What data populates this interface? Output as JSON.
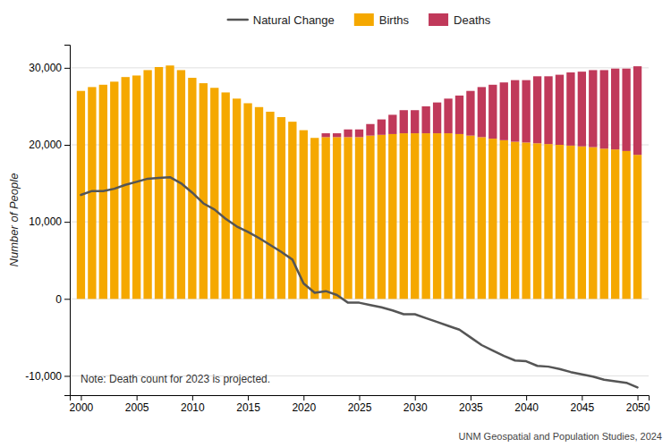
{
  "chart_data": {
    "type": "bar",
    "stacked": true,
    "ylabel": "Number of People",
    "annotations": [
      "Note: Death count for 2023 is projected.",
      "UNM Geospatial and Population Studies, 2024"
    ],
    "x": [
      2000,
      2001,
      2002,
      2003,
      2004,
      2005,
      2006,
      2007,
      2008,
      2009,
      2010,
      2011,
      2012,
      2013,
      2014,
      2015,
      2016,
      2017,
      2018,
      2019,
      2020,
      2021,
      2022,
      2023,
      2024,
      2025,
      2026,
      2027,
      2028,
      2029,
      2030,
      2031,
      2032,
      2033,
      2034,
      2035,
      2036,
      2037,
      2038,
      2039,
      2040,
      2041,
      2042,
      2043,
      2044,
      2045,
      2046,
      2047,
      2048,
      2049,
      2050
    ],
    "series": [
      {
        "name": "Natural Change",
        "type": "line",
        "color": "#555555",
        "values": [
          13500,
          14000,
          14000,
          14300,
          14800,
          15200,
          15600,
          15700,
          15800,
          15000,
          13800,
          12400,
          11600,
          10400,
          9400,
          8700,
          7900,
          7000,
          6100,
          5100,
          2000,
          800,
          1000,
          500,
          -500,
          -500,
          -800,
          -1100,
          -1500,
          -2000,
          -2000,
          -2500,
          -3000,
          -3500,
          -4000,
          -5000,
          -6000,
          -6700,
          -7400,
          -8000,
          -8100,
          -8700,
          -8800,
          -9100,
          -9500,
          -9800,
          -10100,
          -10500,
          -10700,
          -10900,
          -11500
        ]
      },
      {
        "name": "Births",
        "color": "#F5A800",
        "values": [
          27000,
          27500,
          27800,
          28200,
          28800,
          29000,
          29700,
          30100,
          30300,
          29700,
          28700,
          28000,
          27400,
          26800,
          26000,
          25400,
          24900,
          24300,
          23600,
          23000,
          21900,
          20900,
          21000,
          21000,
          21000,
          21000,
          21200,
          21300,
          21400,
          21500,
          21500,
          21500,
          21500,
          21500,
          21400,
          21200,
          21000,
          20800,
          20600,
          20400,
          20300,
          20200,
          20100,
          20000,
          19900,
          19800,
          19700,
          19500,
          19400,
          19200,
          18700
        ]
      },
      {
        "name": "Deaths",
        "color": "#C0395A",
        "values": [
          0,
          0,
          0,
          0,
          0,
          0,
          0,
          0,
          0,
          0,
          0,
          0,
          0,
          0,
          0,
          0,
          0,
          0,
          0,
          0,
          0,
          0,
          500,
          500,
          1000,
          1000,
          1500,
          2000,
          2500,
          3000,
          3000,
          3500,
          4000,
          4500,
          5000,
          5800,
          6500,
          7000,
          7500,
          8000,
          8100,
          8700,
          8800,
          9100,
          9500,
          9700,
          10000,
          10200,
          10500,
          10700,
          11500
        ]
      }
    ],
    "xlim": [
      1999,
      2051
    ],
    "xticks": [
      2000,
      2005,
      2010,
      2015,
      2020,
      2025,
      2030,
      2035,
      2040,
      2045,
      2050
    ],
    "ylim": [
      -12500,
      33000
    ],
    "yticks": [
      {
        "value": -10000,
        "label": "-10,000"
      },
      0,
      {
        "value": 10000,
        "label": "10,000"
      },
      {
        "value": 20000,
        "label": "20,000"
      },
      {
        "value": 30000,
        "label": "30,000"
      }
    ],
    "grid": true,
    "legend": "top"
  }
}
